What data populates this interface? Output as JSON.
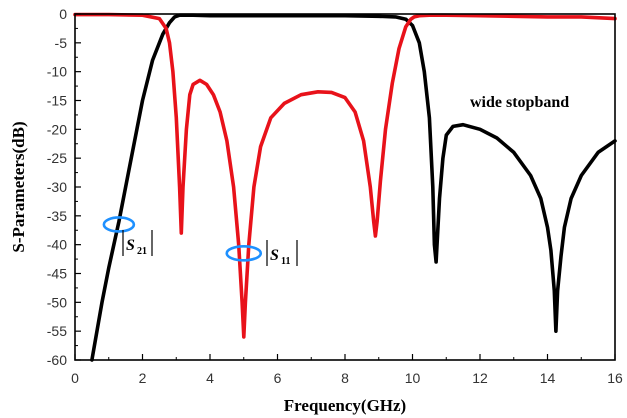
{
  "chart_data": {
    "type": "line",
    "xlabel": "Frequency(GHz)",
    "ylabel": "S-Parameters(dB)",
    "xlim": [
      0,
      16
    ],
    "ylim": [
      -60,
      0
    ],
    "xticks": [
      "0",
      "2",
      "4",
      "6",
      "8",
      "10",
      "12",
      "14",
      "16"
    ],
    "yticks": [
      "0",
      "-5",
      "-10",
      "-15",
      "-20",
      "-25",
      "-30",
      "-35",
      "-40",
      "-45",
      "-50",
      "-55",
      "-60"
    ],
    "grid": false,
    "annotation": "wide stopband",
    "series": [
      {
        "label_symbol": "S",
        "label_sub": "21",
        "color": "#000000",
        "x": [
          0.5,
          0.8,
          1.0,
          1.3,
          1.6,
          2.0,
          2.3,
          2.6,
          2.8,
          2.95,
          3.1,
          3.5,
          4,
          5,
          6,
          7,
          8,
          9,
          9.5,
          9.8,
          10.0,
          10.2,
          10.35,
          10.5,
          10.6,
          10.65,
          10.7,
          10.8,
          10.9,
          11.0,
          11.2,
          11.5,
          12,
          12.5,
          13,
          13.5,
          13.8,
          14.0,
          14.1,
          14.2,
          14.25,
          14.3,
          14.4,
          14.5,
          14.7,
          15,
          15.5,
          16
        ],
        "y": [
          -60,
          -50,
          -44,
          -36,
          -27,
          -15,
          -8,
          -3.5,
          -1.5,
          -0.5,
          -0.2,
          -0.2,
          -0.3,
          -0.3,
          -0.3,
          -0.3,
          -0.3,
          -0.4,
          -0.5,
          -0.9,
          -2,
          -5,
          -10,
          -18,
          -30,
          -40,
          -43,
          -32,
          -25,
          -21,
          -19.5,
          -19.2,
          -20,
          -21.5,
          -24,
          -28,
          -32,
          -37,
          -41,
          -48,
          -55,
          -48,
          -42,
          -37,
          -32,
          -28,
          -24,
          -22
        ]
      },
      {
        "label_symbol": "S",
        "label_sub": "11",
        "color": "#e8121a",
        "x": [
          0,
          1,
          2,
          2.5,
          2.7,
          2.8,
          2.9,
          3.0,
          3.1,
          3.15,
          3.2,
          3.3,
          3.4,
          3.5,
          3.7,
          3.9,
          4.1,
          4.3,
          4.5,
          4.7,
          4.85,
          4.95,
          5.0,
          5.05,
          5.15,
          5.3,
          5.5,
          5.8,
          6.2,
          6.7,
          7.2,
          7.6,
          8.0,
          8.3,
          8.55,
          8.75,
          8.85,
          8.9,
          8.95,
          9.05,
          9.2,
          9.4,
          9.6,
          9.8,
          9.95,
          10.05,
          10.2,
          10.5,
          11,
          12,
          13,
          14,
          15,
          16
        ],
        "y": [
          -0.1,
          -0.1,
          -0.2,
          -0.8,
          -2.5,
          -5,
          -10,
          -18,
          -30,
          -38,
          -30,
          -20,
          -14,
          -12.2,
          -11.5,
          -12.2,
          -14,
          -17,
          -22,
          -30,
          -40,
          -50,
          -56,
          -50,
          -40,
          -30,
          -23,
          -18,
          -15.5,
          -14,
          -13.5,
          -13.6,
          -14.5,
          -17,
          -22,
          -30,
          -36,
          -38.5,
          -36,
          -29,
          -20,
          -12,
          -6,
          -2.2,
          -0.9,
          -0.5,
          -0.3,
          -0.2,
          -0.2,
          -0.3,
          -0.4,
          -0.5,
          -0.5,
          -0.8
        ]
      }
    ]
  },
  "colors": {
    "marker": "#1e90ff"
  }
}
